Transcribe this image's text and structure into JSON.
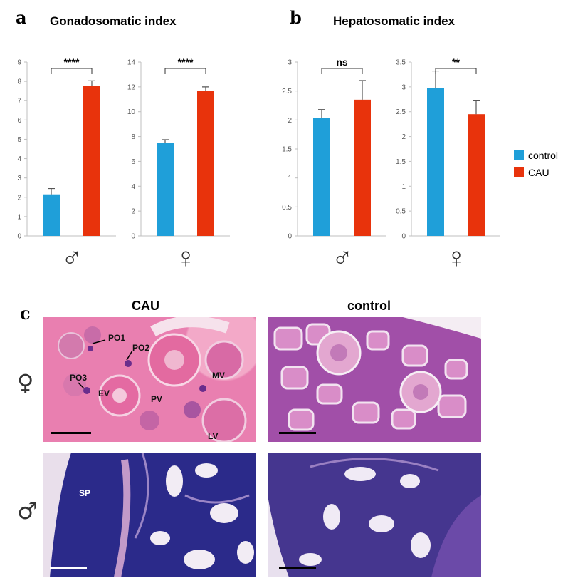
{
  "panel_a": {
    "letter": "a",
    "title": "Gonadosomatic index"
  },
  "panel_b": {
    "letter": "b",
    "title": "Hepatosomatic index"
  },
  "panel_c": {
    "letter": "c",
    "col_cau": "CAU",
    "col_control": "control"
  },
  "symbols": {
    "male": "♂",
    "female": "♀"
  },
  "legend": [
    {
      "label": "control",
      "color": "#1f9fd9"
    },
    {
      "label": "CAU",
      "color": "#e8330c"
    }
  ],
  "colors": {
    "control": "#1f9fd9",
    "cau": "#e8330c",
    "axis": "#bfbfbf",
    "tick_text": "#595959"
  },
  "histology_labels": [
    "PO1",
    "PO2",
    "PO3",
    "EV",
    "PV",
    "MV",
    "LV",
    "SP"
  ],
  "chart_data": [
    {
      "id": "gsi-male",
      "type": "bar",
      "panel": "a",
      "sex": "male",
      "categories": [
        "control",
        "CAU"
      ],
      "values": [
        2.15,
        7.78
      ],
      "errors": [
        0.3,
        0.25
      ],
      "ylim": [
        0,
        9
      ],
      "yticks": [
        "0",
        "1",
        "2",
        "3",
        "4",
        "5",
        "6",
        "7",
        "8",
        "9"
      ],
      "significance": "****",
      "title": "",
      "xlabel": "",
      "ylabel": "",
      "grid": false
    },
    {
      "id": "gsi-female",
      "type": "bar",
      "panel": "a",
      "sex": "female",
      "categories": [
        "control",
        "CAU"
      ],
      "values": [
        7.5,
        11.7
      ],
      "errors": [
        0.25,
        0.3
      ],
      "ylim": [
        0,
        14
      ],
      "yticks": [
        "0",
        "2",
        "4",
        "6",
        "8",
        "10",
        "12",
        "14"
      ],
      "significance": "****",
      "title": "",
      "xlabel": "",
      "ylabel": "",
      "grid": false
    },
    {
      "id": "hsi-male",
      "type": "bar",
      "panel": "b",
      "sex": "male",
      "categories": [
        "control",
        "CAU"
      ],
      "values": [
        2.03,
        2.35
      ],
      "errors": [
        0.15,
        0.33
      ],
      "ylim": [
        0,
        3
      ],
      "yticks": [
        "0",
        "0.5",
        "1",
        "1.5",
        "2",
        "2.5",
        "3"
      ],
      "significance": "ns",
      "title": "",
      "xlabel": "",
      "ylabel": "",
      "grid": false
    },
    {
      "id": "hsi-female",
      "type": "bar",
      "panel": "b",
      "sex": "female",
      "categories": [
        "control",
        "CAU"
      ],
      "values": [
        2.97,
        2.45
      ],
      "errors": [
        0.35,
        0.27
      ],
      "ylim": [
        0,
        3.5
      ],
      "yticks": [
        "0",
        "0.5",
        "1",
        "1.5",
        "2",
        "2.5",
        "3",
        "3.5"
      ],
      "significance": "**",
      "title": "",
      "xlabel": "",
      "ylabel": "",
      "grid": false
    }
  ]
}
